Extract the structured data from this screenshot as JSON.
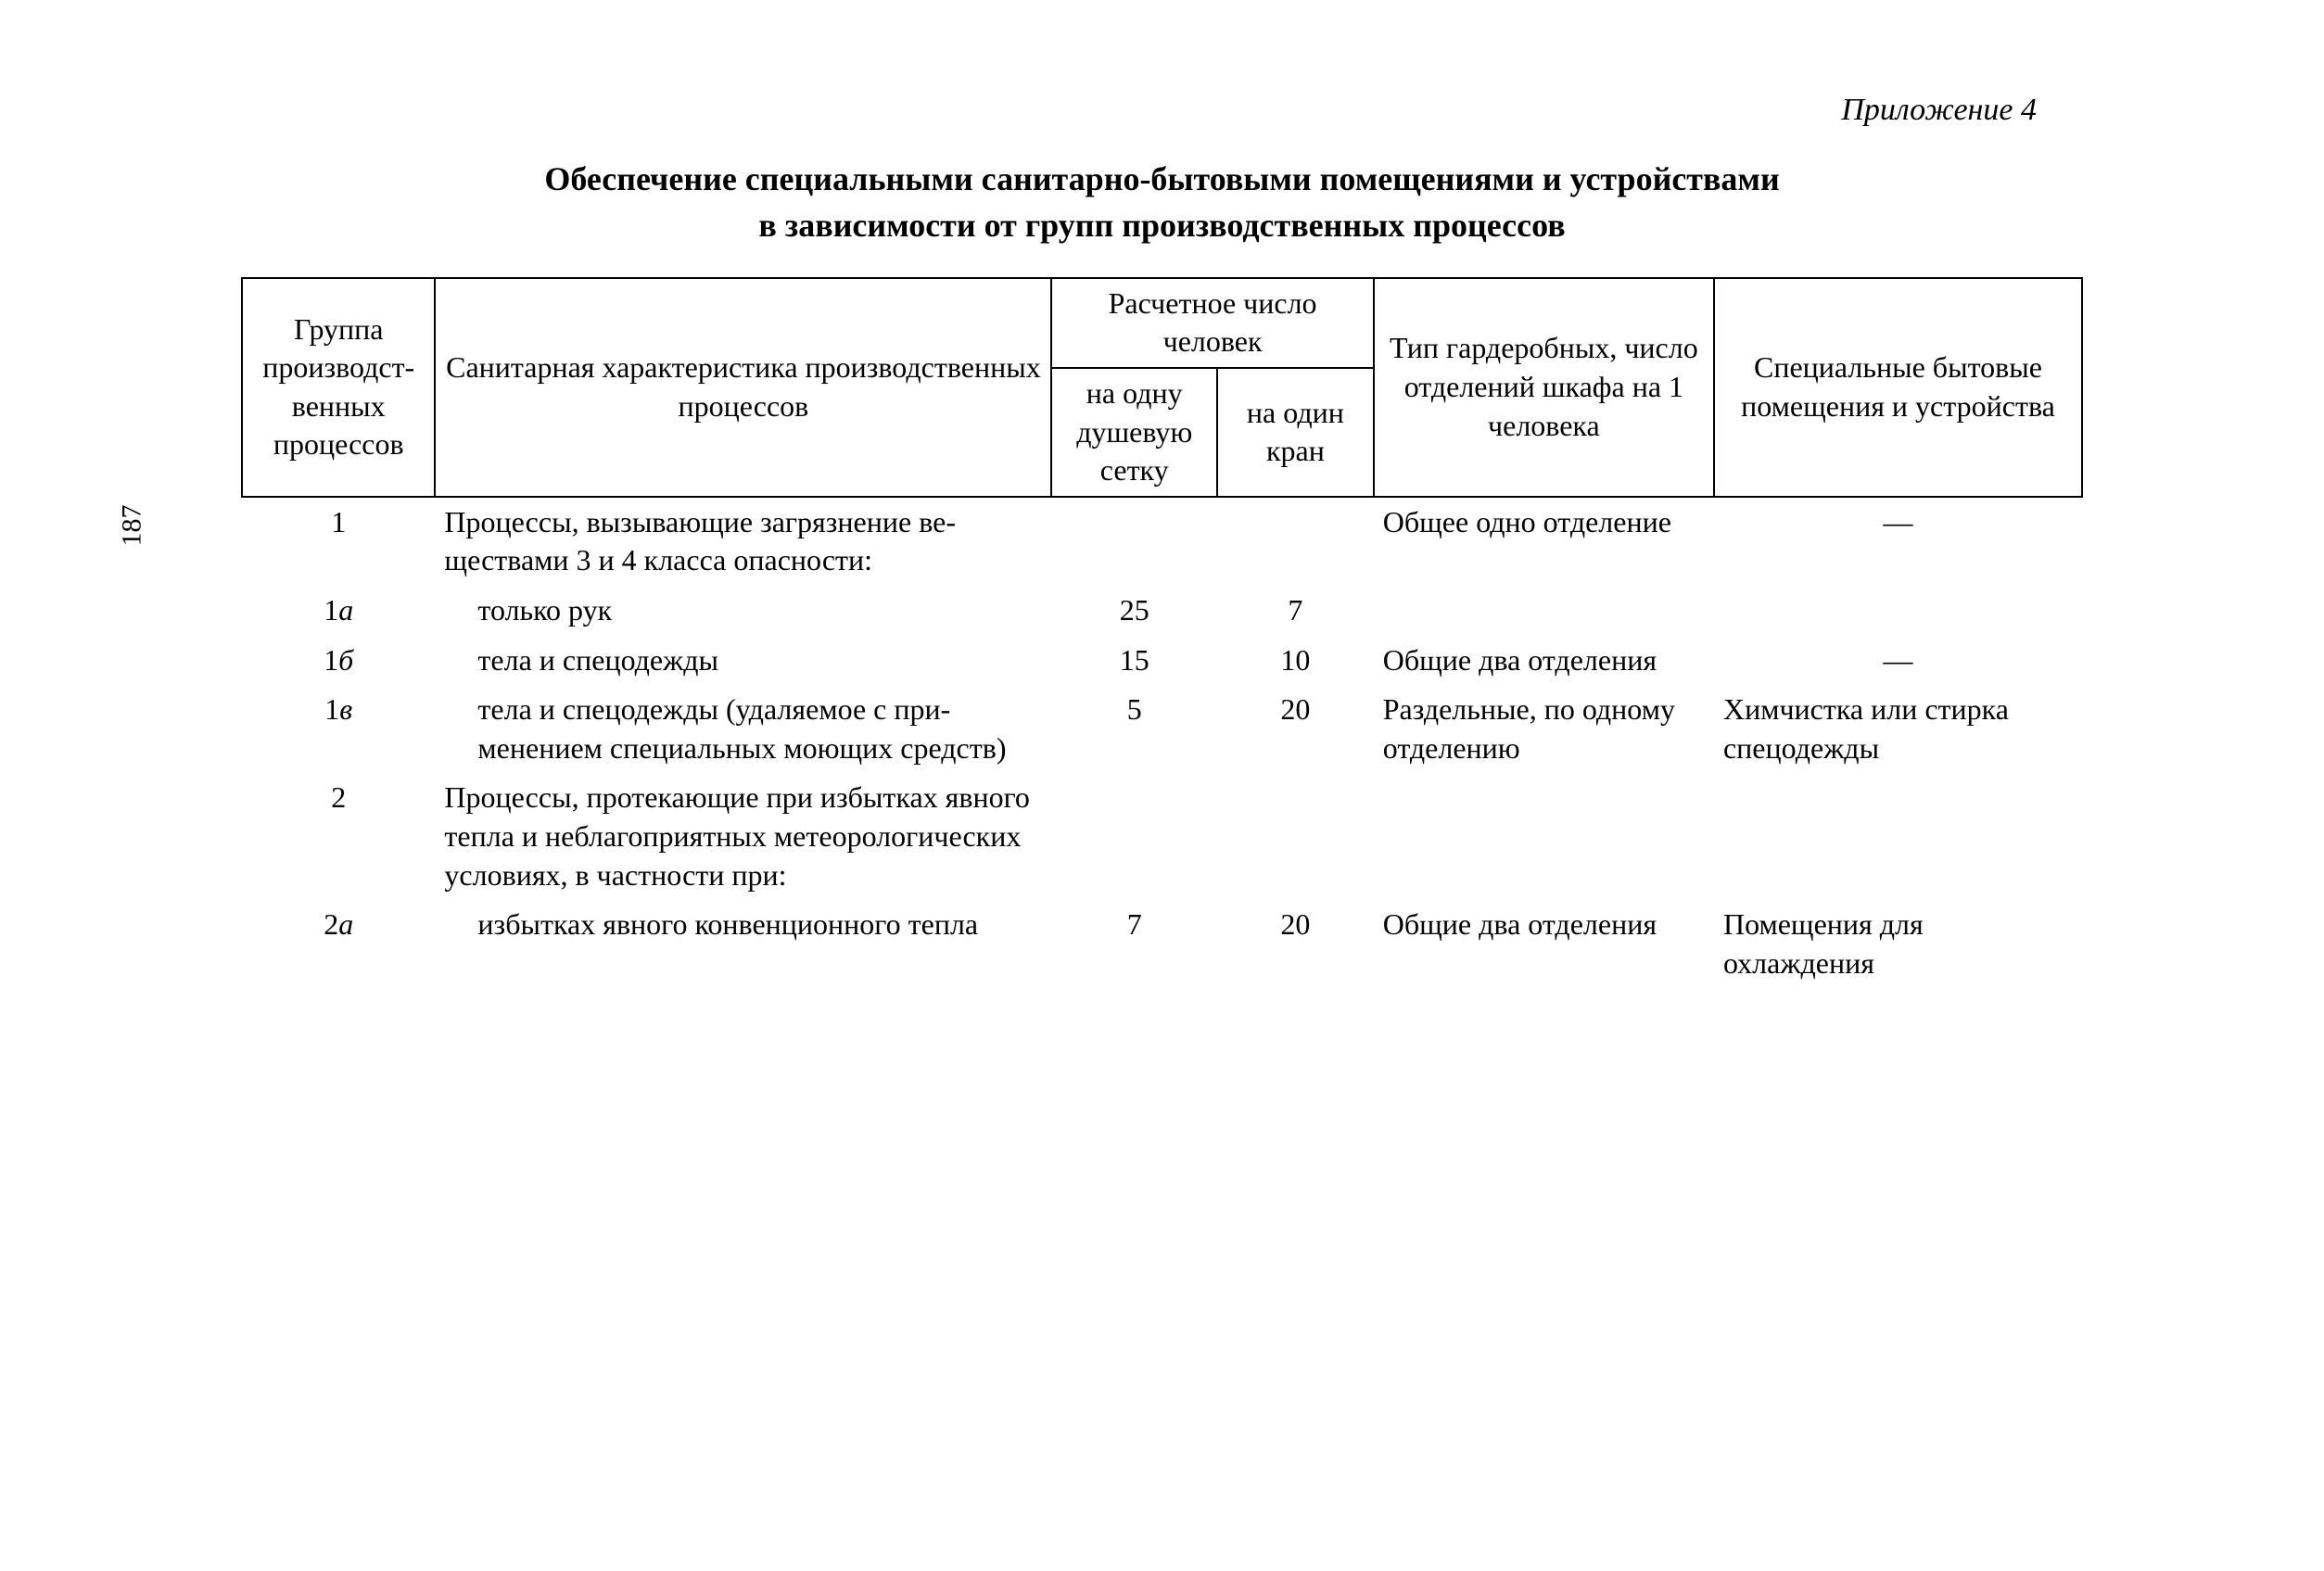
{
  "appendix_label": "Приложение 4",
  "page_number": "187",
  "title_line1": "Обеспечение специальными санитарно-бытовыми помещениями и устройствами",
  "title_line2": "в зависимости от групп производственных процессов",
  "table": {
    "type": "table",
    "background_color": "#ffffff",
    "text_color": "#000000",
    "border_color": "#000000",
    "font_family": "Times New Roman",
    "base_fontsize_pt": 24,
    "header": {
      "col1": "Группа произ­водст­венных процес­сов",
      "col2": "Санитарная характеристика производственных процессов",
      "col3_span": "Расчетное число человек",
      "col3a": "на одну душевую сетку",
      "col3b": "на один кран",
      "col4": "Тип гардероб­ных, число от­делений шкафа на 1 человека",
      "col5": "Специальные бытовые помещения и устройства"
    },
    "columns_width_pct": [
      10.5,
      33.5,
      9,
      8.5,
      18.5,
      20
    ],
    "rows": [
      {
        "group": "1",
        "desc": "Процессы, вызывающие загрязнение ве­ществами 3 и 4 класса опасности:",
        "shower": "",
        "tap": "",
        "wardrobe": "Общее одно от­деление",
        "special": "—",
        "indent": false,
        "italic_group": false
      },
      {
        "group": "1а",
        "desc": "только рук",
        "shower": "25",
        "tap": "7",
        "wardrobe": "",
        "special": "",
        "indent": true,
        "italic_group": true
      },
      {
        "group": "1б",
        "desc": "тела и спецодежды",
        "shower": "15",
        "tap": "10",
        "wardrobe": "Общие два от­деления",
        "special": "—",
        "indent": true,
        "italic_group": true
      },
      {
        "group": "1в",
        "desc": "тела и спецодежды (удаляемое с при­менением специальных моющих средств)",
        "shower": "5",
        "tap": "20",
        "wardrobe": "Раздельные, по одному отделе­нию",
        "special": "Химчистка или стирка спец­одежды",
        "indent": true,
        "italic_group": true
      },
      {
        "group": "2",
        "desc": "Процессы, протекающие при избытках явного тепла и неблагоприятных метео­рологических условиях, в частности при:",
        "shower": "",
        "tap": "",
        "wardrobe": "",
        "special": "",
        "indent": false,
        "italic_group": false
      },
      {
        "group": "2а",
        "desc": "избытках явного конвенционного тепла",
        "shower": "7",
        "tap": "20",
        "wardrobe": "Общие два от­деления",
        "special": "Помещения для охлаждения",
        "indent": true,
        "italic_group": true
      }
    ]
  }
}
